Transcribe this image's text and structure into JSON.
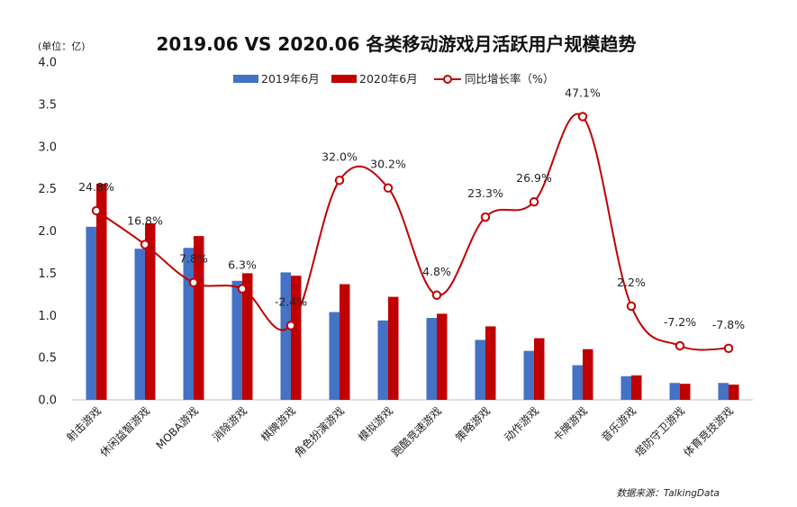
{
  "chart_data": {
    "type": "bar",
    "title": "2019.06 VS 2020.06  各类移动游戏月活跃用户规模趋势",
    "unit_label": "(单位：亿)",
    "source": "数据来源：TalkingData",
    "ylim": [
      0,
      4.0
    ],
    "yticks": [
      "0.0",
      "0.5",
      "1.0",
      "1.5",
      "2.0",
      "2.5",
      "3.0",
      "3.5",
      "4.0"
    ],
    "legend_position": "top",
    "categories": [
      "射击游戏",
      "休闲益智游戏",
      "MOBA游戏",
      "消除游戏",
      "棋牌游戏",
      "角色扮演游戏",
      "模拟游戏",
      "跑酷竞速游戏",
      "策略游戏",
      "动作游戏",
      "卡牌游戏",
      "音乐游戏",
      "塔防守卫游戏",
      "体育竞技游戏"
    ],
    "series": [
      {
        "name": "2019年6月",
        "type": "bar",
        "color": "#4472C4",
        "values": [
          2.05,
          1.79,
          1.8,
          1.41,
          1.51,
          1.04,
          0.94,
          0.97,
          0.71,
          0.58,
          0.41,
          0.28,
          0.2,
          0.2
        ]
      },
      {
        "name": "2020年6月",
        "type": "bar",
        "color": "#C00000",
        "values": [
          2.56,
          2.09,
          1.94,
          1.5,
          1.47,
          1.37,
          1.22,
          1.02,
          0.87,
          0.73,
          0.6,
          0.29,
          0.19,
          0.18
        ]
      },
      {
        "name": "同比增长率（%）",
        "type": "line",
        "color": "#C00000",
        "values": [
          24.8,
          16.8,
          7.8,
          6.3,
          -2.4,
          32.0,
          30.2,
          4.8,
          23.3,
          26.9,
          47.1,
          2.2,
          -7.2,
          -7.8
        ],
        "labels": [
          "24.8%",
          "16.8%",
          "7.8%",
          "6.3%",
          "-2.4%",
          "32.0%",
          "30.2%",
          "4.8%",
          "23.3%",
          "26.9%",
          "47.1%",
          "2.2%",
          "-7.2%",
          "-7.8%"
        ]
      }
    ]
  }
}
